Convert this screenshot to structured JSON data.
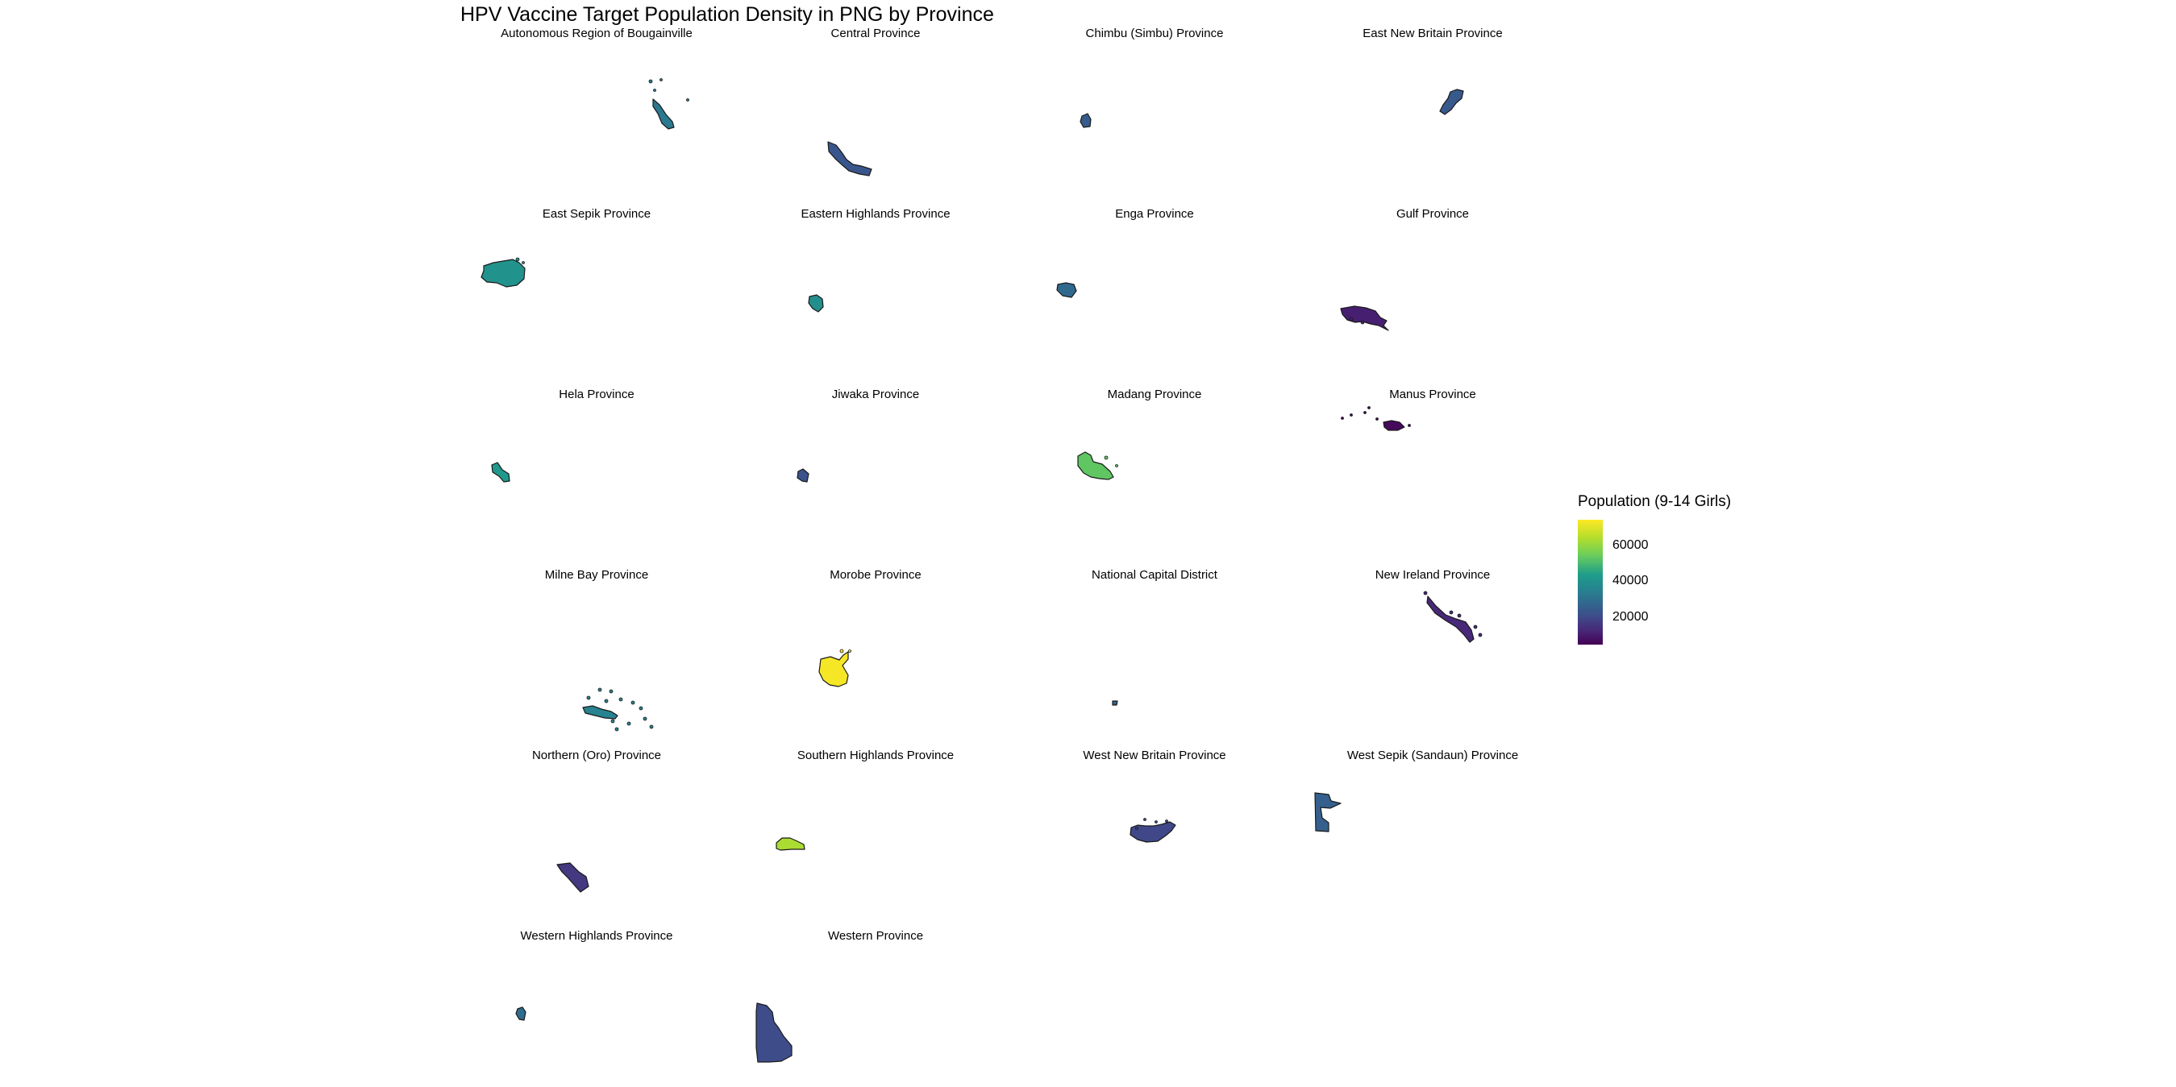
{
  "title": "HPV Vaccine Target Population Density in PNG by Province",
  "legend": {
    "title": "Population (9-14 Girls)",
    "ticks": [
      "60000",
      "40000",
      "20000"
    ],
    "tick_values": [
      60000,
      40000,
      20000
    ],
    "range": [
      5000,
      75000
    ]
  },
  "colors": {
    "low": "#440154",
    "high": "#fde725",
    "border": "#1a1a1a"
  },
  "chart_data": {
    "type": "choropleth-facets",
    "title": "HPV Vaccine Target Population Density in PNG by Province",
    "legend_title": "Population (9-14 Girls)",
    "facets": [
      {
        "name": "Autonomous Region of Bougainville",
        "value": 37000
      },
      {
        "name": "Central Province",
        "value": 26000
      },
      {
        "name": "Chimbu (Simbu) Province",
        "value": 28000
      },
      {
        "name": "East New Britain Province",
        "value": 27000
      },
      {
        "name": "East Sepik Province",
        "value": 45000
      },
      {
        "name": "Eastern Highlands Province",
        "value": 44000
      },
      {
        "name": "Enga Province",
        "value": 32000
      },
      {
        "name": "Gulf Province",
        "value": 12000
      },
      {
        "name": "Hela Province",
        "value": 47000
      },
      {
        "name": "Jiwaka Province",
        "value": 25000
      },
      {
        "name": "Madang Province",
        "value": 56000
      },
      {
        "name": "Manus Province",
        "value": 7000
      },
      {
        "name": "Milne Bay Province",
        "value": 40000
      },
      {
        "name": "Morobe Province",
        "value": 74000
      },
      {
        "name": "National Capital District",
        "value": 30000
      },
      {
        "name": "New Ireland Province",
        "value": 14000
      },
      {
        "name": "Northern (Oro) Province",
        "value": 18000
      },
      {
        "name": "Southern Highlands Province",
        "value": 65000
      },
      {
        "name": "West New Britain Province",
        "value": 22000
      },
      {
        "name": "West Sepik (Sandaun) Province",
        "value": 29000
      },
      {
        "name": "Western Highlands Province",
        "value": 33000
      },
      {
        "name": "Western Province",
        "value": 23000
      }
    ]
  }
}
